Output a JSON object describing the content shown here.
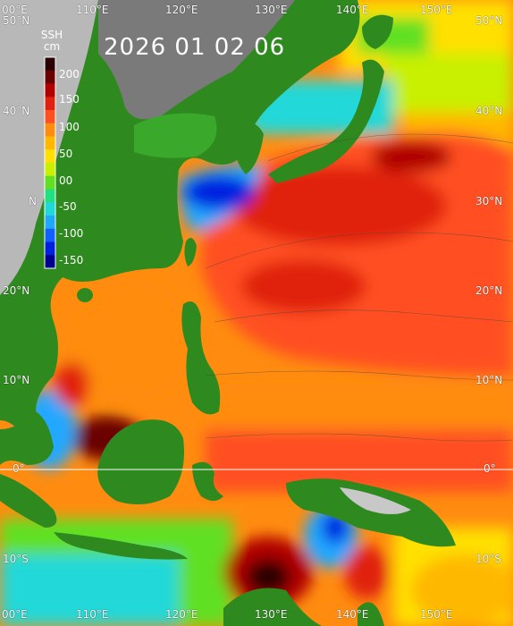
{
  "title": "2026 01 02 06",
  "colorbar": {
    "label_line1": "SSH",
    "label_line2": "cm",
    "ticks": [
      "200",
      "150",
      "100",
      "50",
      "00",
      "-50",
      "-100",
      "-150"
    ],
    "colors": [
      "#2a0000",
      "#6a0000",
      "#b00000",
      "#e02010",
      "#ff5020",
      "#ff8c10",
      "#ffb800",
      "#ffe000",
      "#c8f000",
      "#60e020",
      "#20e080",
      "#20d8d8",
      "#20a8ff",
      "#1060ff",
      "#0020e0",
      "#000090"
    ]
  },
  "axes": {
    "top_lon": [
      "00°E",
      "110°E",
      "120°E",
      "130°E",
      "140°E",
      "150°E"
    ],
    "bottom_lon": [
      "00°E",
      "110°E",
      "120°E",
      "130°E",
      "140°E",
      "150°E"
    ],
    "left_lat": [
      "50°N",
      "40°N",
      "N",
      "20°N",
      "10°N",
      "0°",
      "10°S"
    ],
    "right_lat": [
      "50°N",
      "40°N",
      "30°N",
      "20°N",
      "10°N",
      "0°",
      "10°S"
    ]
  }
}
